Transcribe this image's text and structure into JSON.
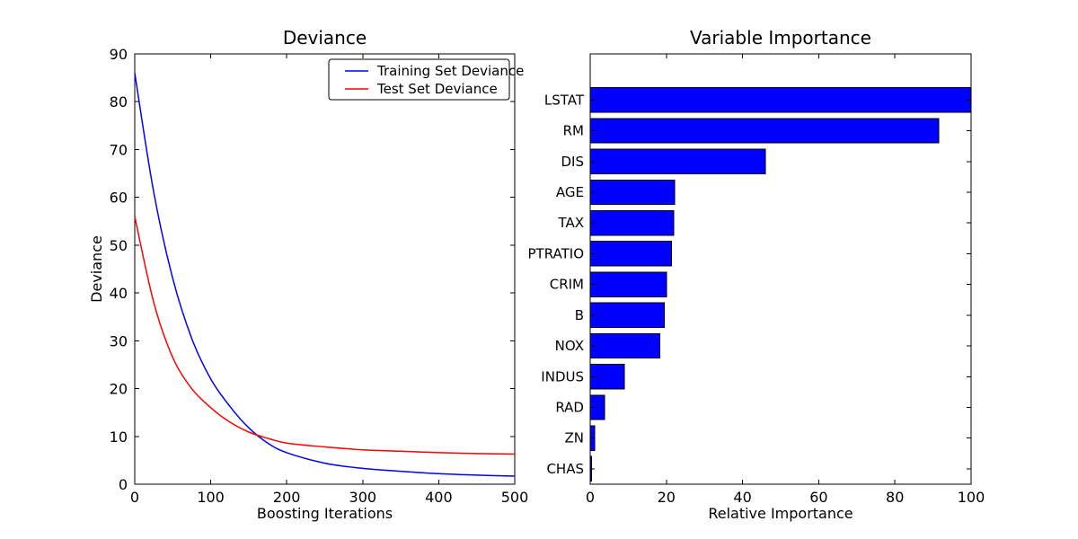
{
  "figure": {
    "background_color": "#ffffff",
    "frame_color": "#000000",
    "text_color": "#000000"
  },
  "chart_data": [
    {
      "type": "line",
      "title": "Deviance",
      "xlabel": "Boosting Iterations",
      "ylabel": "Deviance",
      "xlim": [
        0,
        500
      ],
      "ylim": [
        0,
        90
      ],
      "xticks": [
        0,
        100,
        200,
        300,
        400,
        500
      ],
      "yticks": [
        0,
        10,
        20,
        30,
        40,
        50,
        60,
        70,
        80,
        90
      ],
      "grid": false,
      "legend_position": "upper right",
      "x": [
        0,
        25,
        50,
        75,
        100,
        125,
        150,
        175,
        200,
        250,
        300,
        350,
        400,
        450,
        500
      ],
      "series": [
        {
          "name": "Training Set Deviance",
          "color": "#0000ff",
          "values": [
            86,
            61,
            43,
            30.5,
            22,
            16.3,
            11.8,
            8.6,
            6.6,
            4.4,
            3.3,
            2.7,
            2.2,
            1.9,
            1.7
          ]
        },
        {
          "name": "Test Set Deviance",
          "color": "#ff0000",
          "values": [
            56,
            38,
            26.5,
            20,
            16,
            13.0,
            10.9,
            9.6,
            8.6,
            7.8,
            7.2,
            6.9,
            6.6,
            6.4,
            6.3
          ]
        }
      ]
    },
    {
      "type": "bar",
      "orientation": "horizontal",
      "title": "Variable Importance",
      "xlabel": "Relative Importance",
      "ylabel": "",
      "xlim": [
        0,
        100
      ],
      "ylim": [
        0,
        14
      ],
      "xticks": [
        0,
        20,
        40,
        60,
        80,
        100
      ],
      "grid": false,
      "bar_color": "#0000ff",
      "bar_edge_color": "#000000",
      "categories": [
        "LSTAT",
        "RM",
        "DIS",
        "AGE",
        "TAX",
        "PTRATIO",
        "CRIM",
        "B",
        "NOX",
        "INDUS",
        "RAD",
        "ZN",
        "CHAS"
      ],
      "values": [
        100,
        91.5,
        46,
        22.2,
        21.9,
        21.4,
        20.1,
        19.4,
        18.3,
        9,
        3.8,
        1.2,
        0.4
      ]
    }
  ]
}
